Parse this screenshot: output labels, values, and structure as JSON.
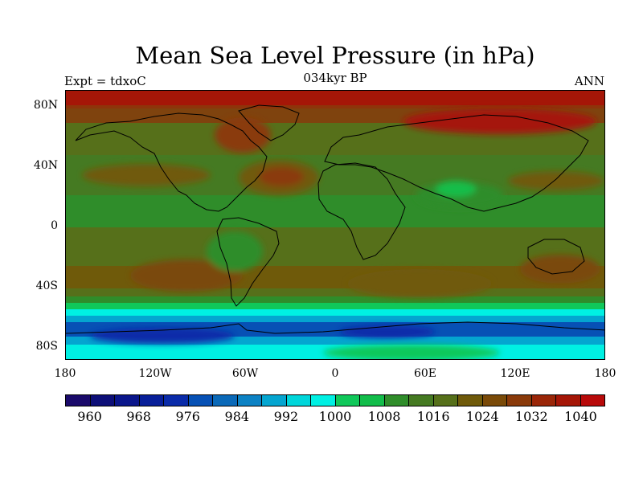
{
  "title": "Mean Sea Level Pressure (in hPa)",
  "subtitle_left": "Expt = tdxoC",
  "subtitle_center": "034kyr BP",
  "subtitle_right": "ANN",
  "lat_labels": [
    "80N",
    "40N",
    "0",
    "40S",
    "80S"
  ],
  "lon_labels": [
    "180",
    "120W",
    "60W",
    "0",
    "60E",
    "120E",
    "180"
  ],
  "colorbar": {
    "colors": [
      "#1a0a6b",
      "#0d0f78",
      "#0a168b",
      "#081f99",
      "#0a2ba9",
      "#0751b5",
      "#0a69b8",
      "#0c82c4",
      "#04a5d0",
      "#00d6da",
      "#00f0e3",
      "#10c85a",
      "#12bd4a",
      "#2f8d2a",
      "#457a22",
      "#56701a",
      "#6f5a0a",
      "#7a4a08",
      "#8a3a0a",
      "#9a2608",
      "#a51607",
      "#b80a0a"
    ],
    "labels": [
      "960",
      "968",
      "976",
      "984",
      "992",
      "1000",
      "1008",
      "1016",
      "1024",
      "1032",
      "1040"
    ]
  }
}
